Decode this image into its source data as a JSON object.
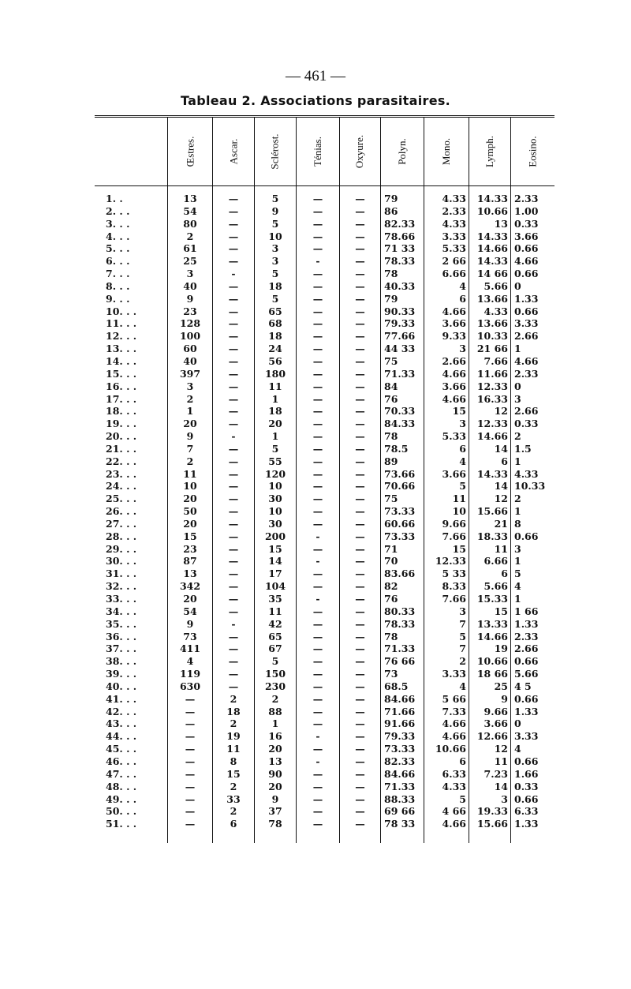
{
  "page_number": "— 461 —",
  "title": "Tableau 2. Associations parasitaires.",
  "columns": [
    "Œstres.",
    "Ascar.",
    "Sclérost.",
    "Ténias.",
    "Oxyure.",
    "Polyn.",
    "Mono.",
    "Lymph.",
    "Eosino."
  ],
  "rows": [
    [
      "1. .",
      "13",
      "—",
      "5",
      "—",
      "—",
      "79",
      "4.33",
      "14.33",
      "2.33"
    ],
    [
      "2. . .",
      "54",
      "—",
      "9",
      "—",
      "—",
      "86",
      "2.33",
      "10.66",
      "1.00"
    ],
    [
      "3. . .",
      "80",
      "—",
      "5",
      "—",
      "—",
      "82.33",
      "4.33",
      "13",
      "0.33"
    ],
    [
      "4. . .",
      "2",
      "—",
      "10",
      "—",
      "—",
      "78.66",
      "3.33",
      "14.33",
      "3.66"
    ],
    [
      "5. . .",
      "61",
      "—",
      "3",
      "—",
      "—",
      "71 33",
      "5.33",
      "14.66",
      "0.66"
    ],
    [
      "6. . .",
      "25",
      "—",
      "3",
      "-",
      "—",
      "78.33",
      "2 66",
      "14.33",
      "4.66"
    ],
    [
      "7. . .",
      "3",
      "-",
      "5",
      "—",
      "—",
      "78",
      "6.66",
      "14 66",
      "0.66"
    ],
    [
      "8. . .",
      "40",
      "—",
      "18",
      "—",
      "—",
      "40.33",
      "4",
      "5.66",
      "0"
    ],
    [
      "9. . .",
      "9",
      "—",
      "5",
      "—",
      "—",
      "79",
      "6",
      "13.66",
      "1.33"
    ],
    [
      "10. . .",
      "23",
      "—",
      "65",
      "—",
      "—",
      "90.33",
      "4.66",
      "4.33",
      "0.66"
    ],
    [
      "11. . .",
      "128",
      "—",
      "68",
      "—",
      "—",
      "79.33",
      "3.66",
      "13.66",
      "3.33"
    ],
    [
      "12. . .",
      "100",
      "—",
      "18",
      "—",
      "—",
      "77.66",
      "9.33",
      "10.33",
      "2.66"
    ],
    [
      "13. . .",
      "60",
      "—",
      "24",
      "—",
      "—",
      "44 33",
      "3",
      "21 66",
      "1"
    ],
    [
      "14. . .",
      "40",
      "—",
      "56",
      "—",
      "—",
      "75",
      "2.66",
      "7.66",
      "4.66"
    ],
    [
      "15. . .",
      "397",
      "—",
      "180",
      "—",
      "—",
      "71.33",
      "4.66",
      "11.66",
      "2.33"
    ],
    [
      "16. . .",
      "3",
      "—",
      "11",
      "—",
      "—",
      "84",
      "3.66",
      "12.33",
      "0"
    ],
    [
      "17. . .",
      "2",
      "—",
      "1",
      "—",
      "—",
      "76",
      "4.66",
      "16.33",
      "3"
    ],
    [
      "18. . .",
      "1",
      "—",
      "18",
      "—",
      "—",
      "70.33",
      "15",
      "12",
      "2.66"
    ],
    [
      "19. . .",
      "20",
      "—",
      "20",
      "—",
      "—",
      "84.33",
      "3",
      "12.33",
      "0.33"
    ],
    [
      "20. . .",
      "9",
      "-",
      "1",
      "—",
      "—",
      "78",
      "5.33",
      "14.66",
      "2"
    ],
    [
      "21. . .",
      "7",
      "—",
      "5",
      "—",
      "—",
      "78.5",
      "6",
      "14",
      "1.5"
    ],
    [
      "22. . .",
      "2",
      "—",
      "55",
      "—",
      "—",
      "89",
      "4",
      "6",
      "1"
    ],
    [
      "23. . .",
      "11",
      "—",
      "120",
      "—",
      "—",
      "73.66",
      "3.66",
      "14.33",
      "4.33"
    ],
    [
      "24. . .",
      "10",
      "—",
      "10",
      "—",
      "—",
      "70.66",
      "5",
      "14",
      "10.33"
    ],
    [
      "25. . .",
      "20",
      "—",
      "30",
      "—",
      "—",
      "75",
      "11",
      "12",
      "2"
    ],
    [
      "26. . .",
      "50",
      "—",
      "10",
      "—",
      "—",
      "73.33",
      "10",
      "15.66",
      "1"
    ],
    [
      "27. . .",
      "20",
      "—",
      "30",
      "—",
      "—",
      "60.66",
      "9.66",
      "21",
      "8"
    ],
    [
      "28. . .",
      "15",
      "—",
      "200",
      "-",
      "—",
      "73.33",
      "7.66",
      "18.33",
      "0.66"
    ],
    [
      "29. . .",
      "23",
      "—",
      "15",
      "—",
      "—",
      "71",
      "15",
      "11",
      "3"
    ],
    [
      "30. . .",
      "87",
      "—",
      "14",
      "-",
      "—",
      "70",
      "12.33",
      "6.66",
      "1"
    ],
    [
      "31. . .",
      "13",
      "—",
      "17",
      "—",
      "—",
      "83.66",
      "5 33",
      "6",
      "5"
    ],
    [
      "32. . .",
      "342",
      "—",
      "104",
      "—",
      "—",
      "82",
      "8.33",
      "5.66",
      "4"
    ],
    [
      "33. . .",
      "20",
      "—",
      "35",
      "-",
      "—",
      "76",
      "7.66",
      "15.33",
      "1"
    ],
    [
      "34. . .",
      "54",
      "—",
      "11",
      "—",
      "—",
      "80.33",
      "3",
      "15",
      "1 66"
    ],
    [
      "35. . .",
      "9",
      "-",
      "42",
      "—",
      "—",
      "78.33",
      "7",
      "13.33",
      "1.33"
    ],
    [
      "36. . .",
      "73",
      "—",
      "65",
      "—",
      "—",
      "78",
      "5",
      "14.66",
      "2.33"
    ],
    [
      "37. . .",
      "411",
      "—",
      "67",
      "—",
      "—",
      "71.33",
      "7",
      "19",
      "2.66"
    ],
    [
      "38. . .",
      "4",
      "—",
      "5",
      "—",
      "—",
      "76 66",
      "2",
      "10.66",
      "0.66"
    ],
    [
      "39. . .",
      "119",
      "—",
      "150",
      "—",
      "—",
      "73",
      "3.33",
      "18 66",
      "5.66"
    ],
    [
      "40. . .",
      "630",
      "—",
      "230",
      "—",
      "—",
      "68.5",
      "4",
      "25",
      "4 5"
    ],
    [
      "41. . .",
      "—",
      "2",
      "2",
      "—",
      "—",
      "84.66",
      "5 66",
      "9",
      "0.66"
    ],
    [
      "42. . .",
      "—",
      "18",
      "88",
      "—",
      "—",
      "71.66",
      "7.33",
      "9.66",
      "1.33"
    ],
    [
      "43. . .",
      "—",
      "2",
      "1",
      "—",
      "—",
      "91.66",
      "4.66",
      "3.66",
      "0"
    ],
    [
      "44. . .",
      "—",
      "19",
      "16",
      "-",
      "—",
      "79.33",
      "4.66",
      "12.66",
      "3.33"
    ],
    [
      "45. . .",
      "—",
      "11",
      "20",
      "—",
      "—",
      "73.33",
      "10.66",
      "12",
      "4"
    ],
    [
      "46. . .",
      "—",
      "8",
      "13",
      "-",
      "—",
      "82.33",
      "6",
      "11",
      "0.66"
    ],
    [
      "47. . .",
      "—",
      "15",
      "90",
      "—",
      "—",
      "84.66",
      "6.33",
      "7.23",
      "1.66"
    ],
    [
      "48. . .",
      "—",
      "2",
      "20",
      "—",
      "—",
      "71.33",
      "4.33",
      "14",
      "0.33"
    ],
    [
      "49. . .",
      "—",
      "33",
      "9",
      "—",
      "—",
      "88.33",
      "5",
      "3",
      "0.66"
    ],
    [
      "50. . .",
      "—",
      "2",
      "37",
      "—",
      "—",
      "69 66",
      "4 66",
      "19.33",
      "6.33"
    ],
    [
      "51. . .",
      "—",
      "6",
      "78",
      "—",
      "—",
      "78 33",
      "4.66",
      "15.66",
      "1.33"
    ]
  ]
}
